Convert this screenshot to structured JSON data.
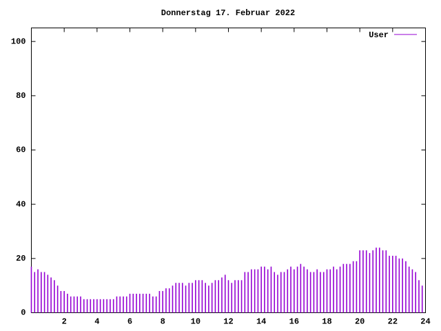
{
  "chart_data": {
    "type": "impulse",
    "title": "Donnerstag 17. Februar 2022",
    "x": [
      0,
      0.2,
      0.4,
      0.6,
      0.8,
      1,
      1.2,
      1.4,
      1.6,
      1.8,
      2,
      2.2,
      2.4,
      2.6,
      2.8,
      3,
      3.2,
      3.4,
      3.6,
      3.8,
      4,
      4.2,
      4.4,
      4.6,
      4.8,
      5,
      5.2,
      5.4,
      5.6,
      5.8,
      6,
      6.2,
      6.4,
      6.6,
      6.8,
      7,
      7.2,
      7.4,
      7.6,
      7.8,
      8,
      8.2,
      8.4,
      8.6,
      8.8,
      9,
      9.2,
      9.4,
      9.6,
      9.8,
      10,
      10.2,
      10.4,
      10.6,
      10.8,
      11,
      11.2,
      11.4,
      11.6,
      11.8,
      12,
      12.2,
      12.4,
      12.6,
      12.8,
      13,
      13.2,
      13.4,
      13.6,
      13.8,
      14,
      14.2,
      14.4,
      14.6,
      14.8,
      15,
      15.2,
      15.4,
      15.6,
      15.8,
      16,
      16.2,
      16.4,
      16.6,
      16.8,
      17,
      17.2,
      17.4,
      17.6,
      17.8,
      18,
      18.2,
      18.4,
      18.6,
      18.8,
      19,
      19.2,
      19.4,
      19.6,
      19.8,
      20,
      20.2,
      20.4,
      20.6,
      20.8,
      21,
      21.2,
      21.4,
      21.6,
      21.8,
      22,
      22.2,
      22.4,
      22.6,
      22.8,
      23,
      23.2,
      23.4,
      23.6,
      23.8
    ],
    "series": [
      {
        "name": "User",
        "color": "#9400d3",
        "values": [
          17,
          15,
          16,
          15,
          15,
          14,
          13,
          12,
          10,
          8,
          8,
          7,
          6,
          6,
          6,
          6,
          5,
          5,
          5,
          5,
          5,
          5,
          5,
          5,
          5,
          5,
          6,
          6,
          6,
          6,
          7,
          7,
          7,
          7,
          7,
          7,
          7,
          6,
          6,
          8,
          8,
          9,
          9,
          10,
          11,
          11,
          11,
          10,
          11,
          11,
          12,
          12,
          12,
          11,
          10,
          11,
          12,
          12,
          13,
          14,
          12,
          11,
          12,
          12,
          12,
          15,
          15,
          16,
          16,
          16,
          17,
          17,
          16,
          17,
          15,
          14,
          15,
          15,
          16,
          17,
          16,
          17,
          18,
          17,
          16,
          15,
          15,
          16,
          15,
          15,
          16,
          16,
          17,
          16,
          17,
          18,
          18,
          18,
          19,
          19,
          23,
          23,
          23,
          22,
          23,
          24,
          24,
          23,
          23,
          21,
          21,
          21,
          20,
          20,
          19,
          17,
          16,
          15,
          12,
          10
        ]
      }
    ],
    "xlim": [
      0,
      24
    ],
    "xticks": [
      2,
      4,
      6,
      8,
      10,
      12,
      14,
      16,
      18,
      20,
      22,
      24
    ],
    "ylim": [
      0,
      105
    ],
    "yticks": [
      0,
      20,
      40,
      60,
      80,
      100
    ]
  }
}
